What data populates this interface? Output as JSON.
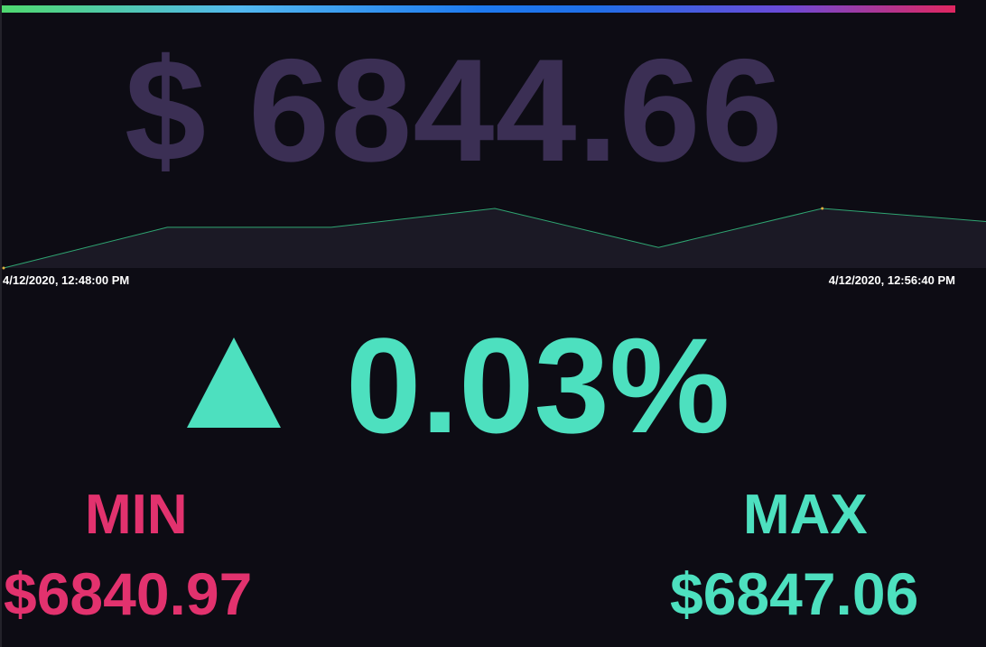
{
  "ticker": {
    "current_price": "$ 6844.66",
    "change_percent": "0.03%",
    "change_direction": "up",
    "min_label": "MIN",
    "min_value": "$6840.97",
    "max_label": "MAX",
    "max_value": "$6847.06"
  },
  "timeline": {
    "start": "4/12/2020, 12:48:00 PM",
    "end": "4/12/2020, 12:56:40 PM"
  },
  "colors": {
    "up": "#4de0bf",
    "down": "#e2326e",
    "price_dim": "#3b2f54",
    "sparkline": "#2fa572",
    "background": "#0d0c14"
  },
  "chart_data": {
    "type": "area",
    "values": [
      6840.97,
      6844.2,
      6844.2,
      6845.7,
      6842.6,
      6845.7,
      6844.66
    ],
    "ylim": [
      6840.97,
      6847.06
    ]
  }
}
